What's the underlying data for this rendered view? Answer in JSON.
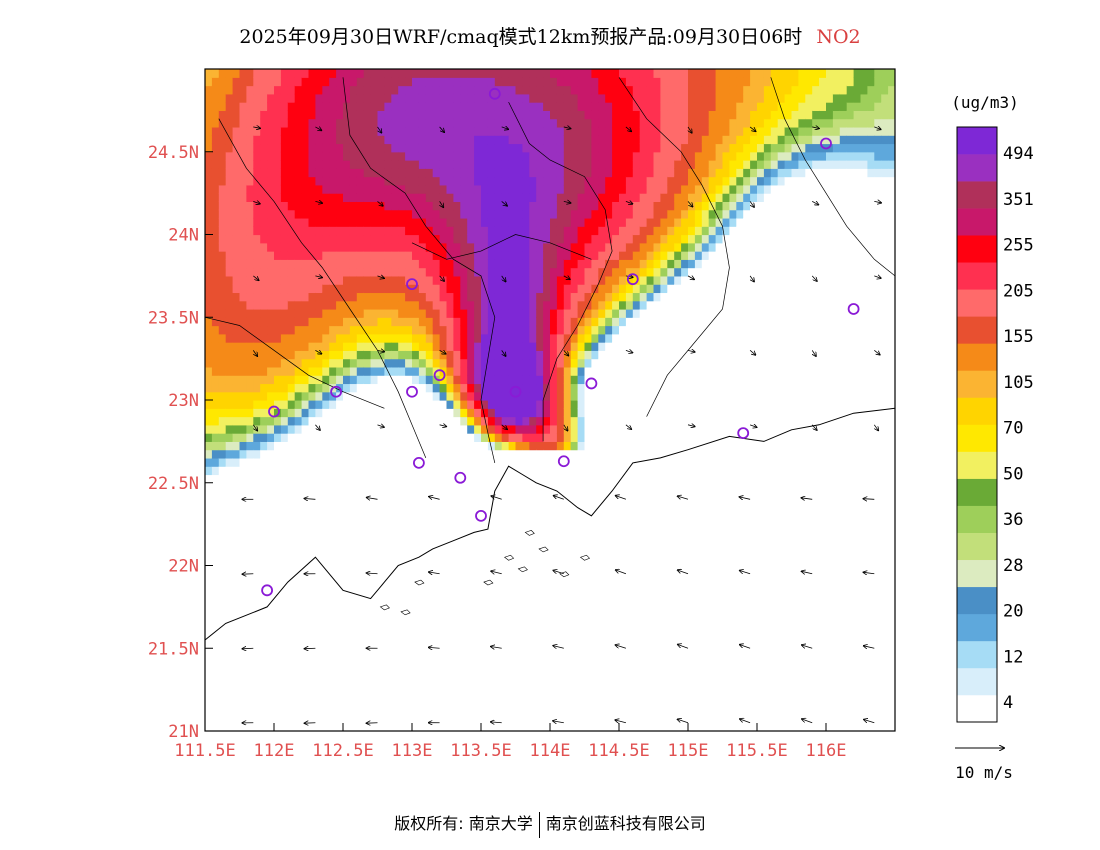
{
  "title": {
    "main": "2025年09月30日WRF/cmaq模式12km预报产品:09月30日06时",
    "pollutant": "NO2"
  },
  "axes": {
    "lat_labels": [
      "24.5N",
      "24N",
      "23.5N",
      "23N",
      "22.5N",
      "22N",
      "21.5N",
      "21N"
    ],
    "lat_values": [
      24.5,
      24,
      23.5,
      23,
      22.5,
      22,
      21.5,
      21
    ],
    "lon_labels": [
      "111.5E",
      "112E",
      "112.5E",
      "113E",
      "113.5E",
      "114E",
      "114.5E",
      "115E",
      "115.5E",
      "116E"
    ],
    "lon_values": [
      111.5,
      112,
      112.5,
      113,
      113.5,
      114,
      114.5,
      115,
      115.5,
      116
    ],
    "lon_range": [
      111.5,
      116.5
    ],
    "lat_range": [
      21.0,
      25.0
    ],
    "label_color": "#e05050"
  },
  "legend": {
    "unit": "(ug/m3)",
    "labels": [
      "494",
      "351",
      "255",
      "205",
      "155",
      "105",
      "70",
      "50",
      "36",
      "28",
      "20",
      "12",
      "4"
    ],
    "colors": [
      "#ffffff",
      "#d8eefa",
      "#a6dcf5",
      "#5ea8dc",
      "#4a8fc6",
      "#dcebc0",
      "#c2df7a",
      "#9ecf5a",
      "#6aaa36",
      "#f2f060",
      "#ffe800",
      "#ffd400",
      "#fbb432",
      "#f58a18",
      "#e85030",
      "#ff6a6a",
      "#ff3050",
      "#ff0010",
      "#c8186a",
      "#b0305a",
      "#9a30c0",
      "#7e28d6"
    ]
  },
  "wind_scale": {
    "label": "10 m/s"
  },
  "credit": {
    "left": "版权所有: 南京大学",
    "right": "南京创蓝科技有限公司"
  },
  "stations": [
    [
      113.6,
      24.85
    ],
    [
      116.0,
      24.55
    ],
    [
      113.0,
      23.7
    ],
    [
      114.6,
      23.73
    ],
    [
      116.2,
      23.55
    ],
    [
      112.0,
      22.93
    ],
    [
      112.45,
      23.05
    ],
    [
      113.0,
      23.05
    ],
    [
      113.2,
      23.15
    ],
    [
      113.75,
      23.05
    ],
    [
      114.3,
      23.1
    ],
    [
      115.4,
      22.8
    ],
    [
      113.05,
      22.62
    ],
    [
      113.35,
      22.53
    ],
    [
      113.5,
      22.3
    ],
    [
      114.1,
      22.63
    ],
    [
      111.95,
      21.85
    ]
  ],
  "field": {
    "blobs": [
      {
        "lon": 113.0,
        "lat": 24.75,
        "r": 1.9,
        "v": 58
      },
      {
        "lon": 113.9,
        "lat": 24.65,
        "r": 1.3,
        "v": 90
      },
      {
        "lon": 112.9,
        "lat": 24.85,
        "r": 0.9,
        "v": 85
      },
      {
        "lon": 114.0,
        "lat": 24.3,
        "r": 0.8,
        "v": 80
      },
      {
        "lon": 115.4,
        "lat": 24.6,
        "r": 1.6,
        "v": 52
      },
      {
        "lon": 111.9,
        "lat": 23.3,
        "r": 1.1,
        "v": 65
      },
      {
        "lon": 112.3,
        "lat": 24.3,
        "r": 0.9,
        "v": 62
      },
      {
        "lon": 112.6,
        "lat": 23.85,
        "r": 0.55,
        "v": -28
      },
      {
        "lon": 113.05,
        "lat": 24.0,
        "r": 0.35,
        "v": -15
      },
      {
        "lon": 112.7,
        "lat": 23.4,
        "r": 0.7,
        "v": -14
      },
      {
        "lon": 112.7,
        "lat": 23.0,
        "r": 0.55,
        "v": -10
      },
      {
        "lon": 114.6,
        "lat": 23.9,
        "r": 0.9,
        "v": -10
      },
      {
        "lon": 113.65,
        "lat": 23.9,
        "r": 0.45,
        "v": 60
      },
      {
        "lon": 113.75,
        "lat": 23.5,
        "r": 0.4,
        "v": 110
      },
      {
        "lon": 113.65,
        "lat": 23.2,
        "r": 0.35,
        "v": 140
      },
      {
        "lon": 113.7,
        "lat": 23.05,
        "r": 0.25,
        "v": 230
      },
      {
        "lon": 113.85,
        "lat": 22.95,
        "r": 0.25,
        "v": 100
      },
      {
        "lon": 114.05,
        "lat": 22.75,
        "r": 0.25,
        "v": 90
      },
      {
        "lon": 114.1,
        "lat": 22.55,
        "r": 0.3,
        "v": 40
      },
      {
        "lon": 112.6,
        "lat": 22.3,
        "r": 0.9,
        "v": -58
      },
      {
        "lon": 111.8,
        "lat": 22.0,
        "r": 0.6,
        "v": -50
      },
      {
        "lon": 113.0,
        "lat": 22.2,
        "r": 0.5,
        "v": -40
      },
      {
        "lon": 115.3,
        "lat": 23.0,
        "r": 0.9,
        "v": -60
      },
      {
        "lon": 114.95,
        "lat": 23.2,
        "r": 0.45,
        "v": -20
      },
      {
        "lon": 116.0,
        "lat": 23.85,
        "r": 0.7,
        "v": -45
      },
      {
        "lon": 115.6,
        "lat": 24.2,
        "r": 0.6,
        "v": -20
      },
      {
        "lon": 116.2,
        "lat": 23.4,
        "r": 0.55,
        "v": -12
      },
      {
        "lon": 116.1,
        "lat": 22.95,
        "r": 0.45,
        "v": -10
      },
      {
        "lon": 113.3,
        "lat": 21.6,
        "r": 1.3,
        "v": -90
      },
      {
        "lon": 115.2,
        "lat": 21.8,
        "r": 1.8,
        "v": -120
      }
    ]
  },
  "coast": [
    [
      [
        111.5,
        21.55
      ],
      [
        111.65,
        21.65
      ],
      [
        111.8,
        21.7
      ],
      [
        111.95,
        21.75
      ],
      [
        112.1,
        21.9
      ],
      [
        112.3,
        22.05
      ],
      [
        112.5,
        21.85
      ],
      [
        112.7,
        21.8
      ],
      [
        112.8,
        21.9
      ],
      [
        112.9,
        22.0
      ],
      [
        113.05,
        22.05
      ],
      [
        113.15,
        22.1
      ],
      [
        113.3,
        22.15
      ],
      [
        113.45,
        22.2
      ],
      [
        113.55,
        22.22
      ],
      [
        113.6,
        22.45
      ],
      [
        113.7,
        22.6
      ],
      [
        113.8,
        22.55
      ],
      [
        113.9,
        22.5
      ],
      [
        114.05,
        22.45
      ],
      [
        114.2,
        22.35
      ],
      [
        114.3,
        22.3
      ],
      [
        114.45,
        22.45
      ],
      [
        114.6,
        22.62
      ],
      [
        114.8,
        22.65
      ],
      [
        115.0,
        22.7
      ],
      [
        115.3,
        22.78
      ],
      [
        115.55,
        22.75
      ],
      [
        115.75,
        22.82
      ],
      [
        115.95,
        22.85
      ],
      [
        116.2,
        22.92
      ],
      [
        116.5,
        22.95
      ]
    ]
  ],
  "borders": [
    [
      [
        111.6,
        24.7
      ],
      [
        111.8,
        24.4
      ],
      [
        112.0,
        24.2
      ],
      [
        112.2,
        23.95
      ],
      [
        112.35,
        23.8
      ],
      [
        112.55,
        23.55
      ],
      [
        112.75,
        23.3
      ],
      [
        112.9,
        23.05
      ],
      [
        113.0,
        22.85
      ],
      [
        113.1,
        22.65
      ]
    ],
    [
      [
        112.5,
        24.95
      ],
      [
        112.55,
        24.6
      ],
      [
        112.7,
        24.4
      ],
      [
        112.95,
        24.25
      ],
      [
        113.1,
        24.05
      ],
      [
        113.3,
        23.85
      ],
      [
        113.5,
        23.75
      ],
      [
        113.6,
        23.5
      ],
      [
        113.55,
        23.25
      ],
      [
        113.5,
        23.0
      ],
      [
        113.55,
        22.8
      ],
      [
        113.6,
        22.62
      ]
    ],
    [
      [
        113.7,
        24.8
      ],
      [
        113.85,
        24.55
      ],
      [
        114.0,
        24.45
      ],
      [
        114.25,
        24.35
      ],
      [
        114.4,
        24.15
      ],
      [
        114.45,
        23.9
      ],
      [
        114.35,
        23.7
      ],
      [
        114.2,
        23.45
      ],
      [
        114.05,
        23.25
      ],
      [
        113.95,
        23.0
      ],
      [
        113.95,
        22.75
      ]
    ],
    [
      [
        114.5,
        24.95
      ],
      [
        114.7,
        24.7
      ],
      [
        114.95,
        24.5
      ],
      [
        115.1,
        24.3
      ],
      [
        115.25,
        24.05
      ],
      [
        115.3,
        23.8
      ],
      [
        115.25,
        23.55
      ],
      [
        115.05,
        23.35
      ],
      [
        114.85,
        23.15
      ],
      [
        114.7,
        22.9
      ]
    ],
    [
      [
        115.6,
        24.95
      ],
      [
        115.7,
        24.7
      ],
      [
        115.85,
        24.45
      ],
      [
        116.0,
        24.25
      ],
      [
        116.15,
        24.05
      ],
      [
        116.35,
        23.85
      ],
      [
        116.5,
        23.75
      ]
    ],
    [
      [
        111.5,
        23.5
      ],
      [
        111.75,
        23.45
      ],
      [
        112.0,
        23.3
      ],
      [
        112.25,
        23.15
      ],
      [
        112.5,
        23.05
      ],
      [
        112.8,
        22.95
      ]
    ],
    [
      [
        113.0,
        23.95
      ],
      [
        113.25,
        23.85
      ],
      [
        113.5,
        23.9
      ],
      [
        113.75,
        24.0
      ],
      [
        114.0,
        23.95
      ],
      [
        114.3,
        23.85
      ]
    ]
  ],
  "islands": [
    [
      113.7,
      22.05
    ],
    [
      113.8,
      21.98
    ],
    [
      113.95,
      22.1
    ],
    [
      114.1,
      21.95
    ],
    [
      114.25,
      22.05
    ],
    [
      113.55,
      21.9
    ],
    [
      113.85,
      22.2
    ],
    [
      112.8,
      21.75
    ],
    [
      112.95,
      21.72
    ],
    [
      113.05,
      21.9
    ]
  ]
}
